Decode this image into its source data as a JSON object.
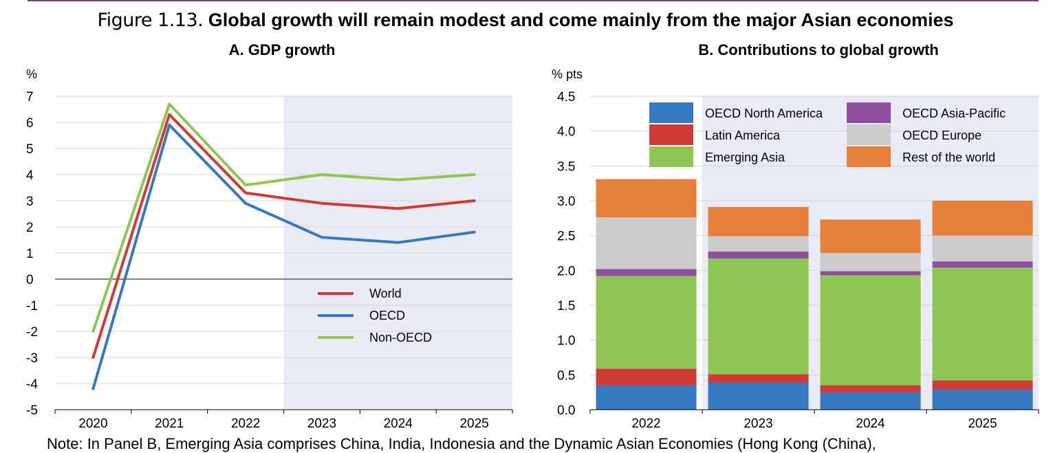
{
  "figure": {
    "number": "Figure 1.13.",
    "title": "Global growth will remain modest and come mainly from the major Asian economies"
  },
  "note": "Note: In Panel B, Emerging Asia comprises China, India, Indonesia and the Dynamic Asian Economies (Hong Kong (China),",
  "colors": {
    "world": "#d03a35",
    "oecd": "#3579c3",
    "non_oecd": "#8fc653",
    "projection_shade": "#e9ecf5",
    "oecd_north_america": "#3579c3",
    "latin_america": "#d03a35",
    "emerging_asia": "#8fc653",
    "oecd_asia_pacific": "#8e4fa0",
    "oecd_europe": "#cccccc",
    "rest_of_world": "#e7803b"
  },
  "chart_data": [
    {
      "id": "panelA",
      "type": "line",
      "title": "A. GDP growth",
      "ylabel": "%",
      "categories": [
        "2020",
        "2021",
        "2022",
        "2023",
        "2024",
        "2025"
      ],
      "ylim": [
        -5,
        7
      ],
      "yticks": [
        "7",
        "6",
        "5",
        "4",
        "3",
        "2",
        "1",
        "0",
        "-1",
        "-2",
        "-3",
        "-4",
        "-5"
      ],
      "projection_from": "2023",
      "series": [
        {
          "name": "World",
          "values": [
            -3.0,
            6.3,
            3.3,
            2.9,
            2.7,
            3.0
          ]
        },
        {
          "name": "OECD",
          "values": [
            -4.2,
            5.9,
            2.9,
            1.6,
            1.4,
            1.8
          ]
        },
        {
          "name": "Non-OECD",
          "values": [
            -2.0,
            6.7,
            3.6,
            4.0,
            3.8,
            4.0
          ]
        }
      ],
      "legend_position": "bottom-right"
    },
    {
      "id": "panelB",
      "type": "bar",
      "stacked": true,
      "title": "B. Contributions to global growth",
      "ylabel": "% pts",
      "categories": [
        "2022",
        "2023",
        "2024",
        "2025"
      ],
      "ylim": [
        0,
        4.5
      ],
      "yticks": [
        "4.5",
        "4.0",
        "3.5",
        "3.0",
        "2.5",
        "2.0",
        "1.5",
        "1.0",
        "0.5",
        "0.0"
      ],
      "projection_from": "2023",
      "series": [
        {
          "name": "OECD North America",
          "values": [
            0.35,
            0.39,
            0.25,
            0.29
          ]
        },
        {
          "name": "Latin America",
          "values": [
            0.24,
            0.12,
            0.1,
            0.13
          ]
        },
        {
          "name": "Emerging Asia",
          "values": [
            1.33,
            1.66,
            1.58,
            1.62
          ]
        },
        {
          "name": "OECD Asia-Pacific",
          "values": [
            0.1,
            0.1,
            0.06,
            0.09
          ]
        },
        {
          "name": "OECD Europe",
          "values": [
            0.74,
            0.22,
            0.26,
            0.37
          ]
        },
        {
          "name": "Rest of the world",
          "values": [
            0.55,
            0.42,
            0.48,
            0.5
          ]
        }
      ],
      "legend_position": "top"
    }
  ]
}
